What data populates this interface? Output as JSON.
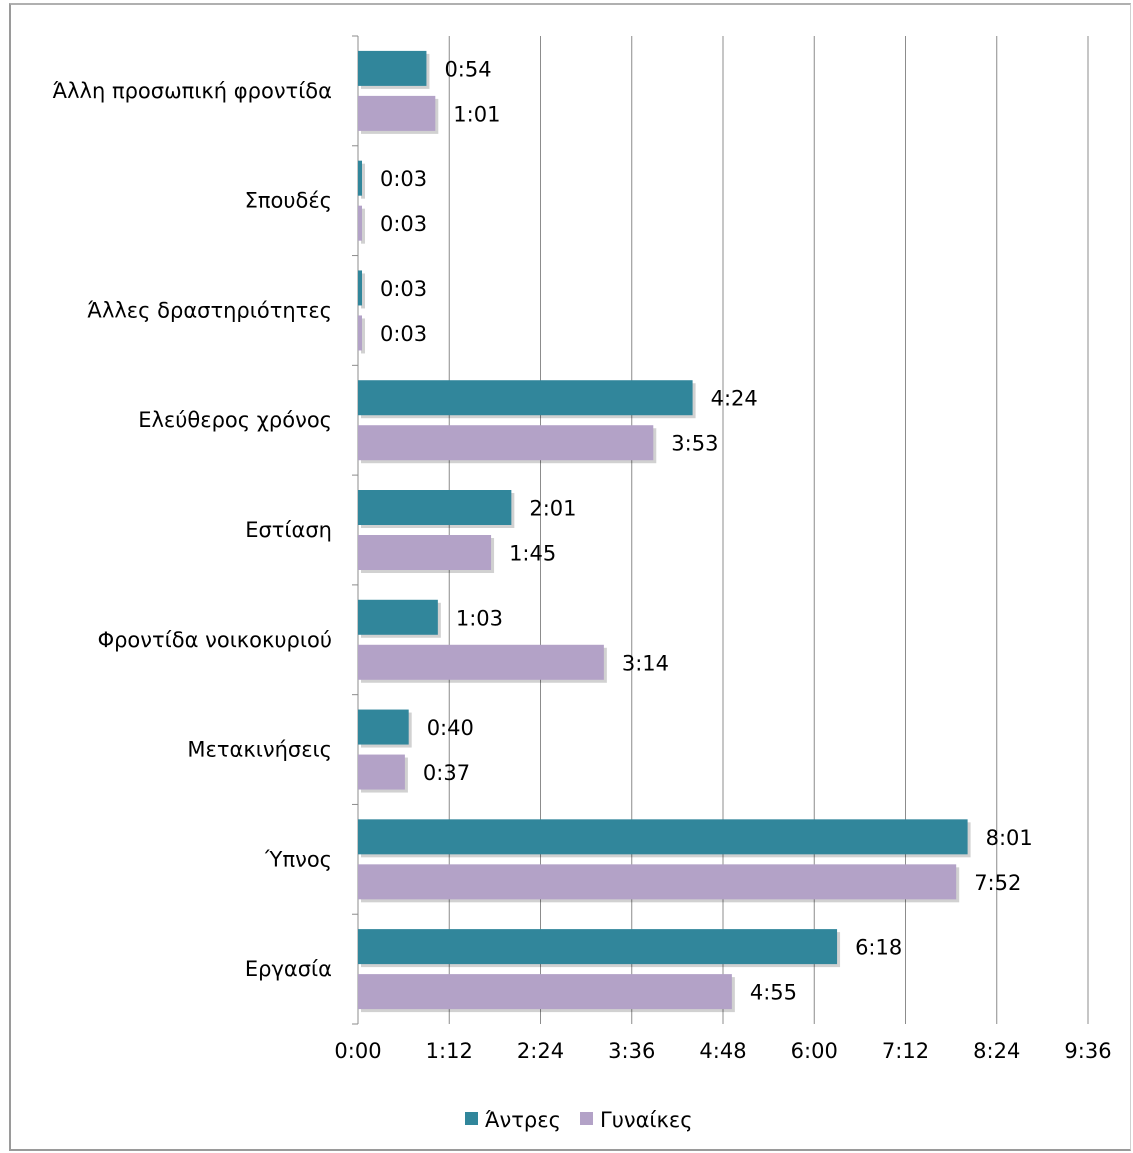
{
  "chart_data": {
    "type": "bar",
    "orientation": "horizontal",
    "categories": [
      "Εργασία",
      "Ύπνος",
      "Μετακινήσεις",
      "Φροντίδα νοικοκυριού",
      "Εστίαση",
      "Ελεύθερος χρόνος",
      "Άλλες δραστηριότητες",
      "Σπουδές",
      "Άλλη προσωπική φροντίδα"
    ],
    "series": [
      {
        "name": "Άντρες",
        "color": "#31869b",
        "values": [
          378,
          481,
          40,
          63,
          121,
          264,
          3,
          3,
          54
        ],
        "labels": [
          "6:18",
          "8:01",
          "0:40",
          "1:03",
          "2:01",
          "4:24",
          "0:03",
          "0:03",
          "0:54"
        ]
      },
      {
        "name": "Γυναίκες",
        "color": "#b3a2c7",
        "values": [
          295,
          472,
          37,
          194,
          105,
          233,
          3,
          3,
          61
        ],
        "labels": [
          "4:55",
          "7:52",
          "0:37",
          "3:14",
          "1:45",
          "3:53",
          "0:03",
          "0:03",
          "1:01"
        ]
      }
    ],
    "xlim": [
      0,
      576
    ],
    "xticks": [
      0,
      72,
      144,
      216,
      288,
      360,
      432,
      504,
      576
    ],
    "xtick_labels": [
      "0:00",
      "1:12",
      "2:24",
      "3:36",
      "4:48",
      "6:00",
      "7:12",
      "8:24",
      "9:36"
    ],
    "grid": true,
    "legend_position": "bottom"
  }
}
